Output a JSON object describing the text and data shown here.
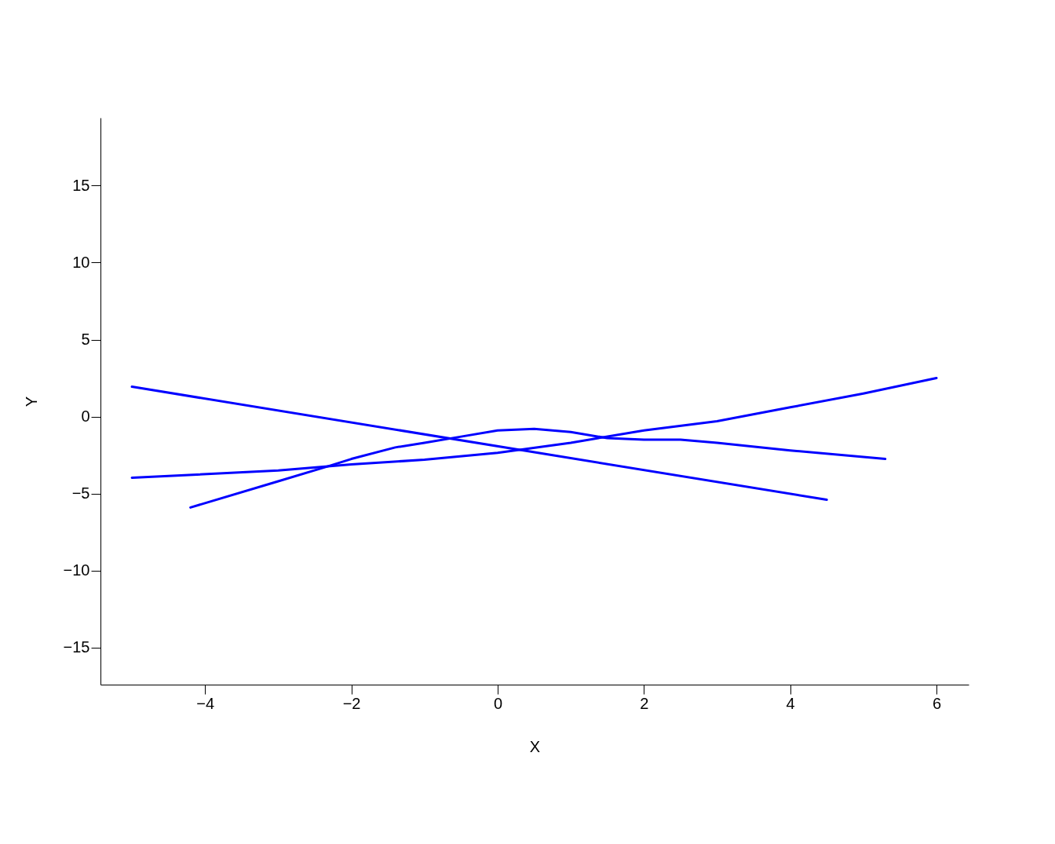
{
  "chart_data": {
    "type": "line",
    "xlabel": "X",
    "ylabel": "Y",
    "xlim": [
      -5.43,
      6.44
    ],
    "ylim": [
      -17.4,
      19.4
    ],
    "xticks": [
      -4,
      -2,
      0,
      2,
      4,
      6
    ],
    "yticks": [
      -15,
      -10,
      -5,
      0,
      5,
      10,
      15
    ],
    "grid": false,
    "legend": false,
    "marker": "none",
    "line_style": "solid",
    "series": [
      {
        "color": "#0000ff",
        "x": [
          -5,
          4.5
        ],
        "values": [
          1.94,
          -5.4
        ]
      },
      {
        "color": "#0000ff",
        "x": [
          -5,
          -3,
          -2,
          -1,
          0,
          1,
          2,
          3,
          4,
          5,
          6
        ],
        "values": [
          -3.97,
          -3.5,
          -3.1,
          -2.8,
          -2.35,
          -1.7,
          -0.9,
          -0.3,
          0.6,
          1.5,
          2.5
        ]
      },
      {
        "color": "#0000ff",
        "x": [
          -4.2,
          -3,
          -2.3,
          -2,
          -1.4,
          -1,
          -0.5,
          0,
          0.5,
          1,
          1.5,
          2,
          2.5,
          3,
          4,
          5.3
        ],
        "values": [
          -5.9,
          -4.2,
          -3.2,
          -2.75,
          -2.0,
          -1.7,
          -1.3,
          -0.9,
          -0.8,
          -1.0,
          -1.4,
          -1.5,
          -1.5,
          -1.7,
          -2.2,
          -2.75
        ]
      }
    ]
  }
}
